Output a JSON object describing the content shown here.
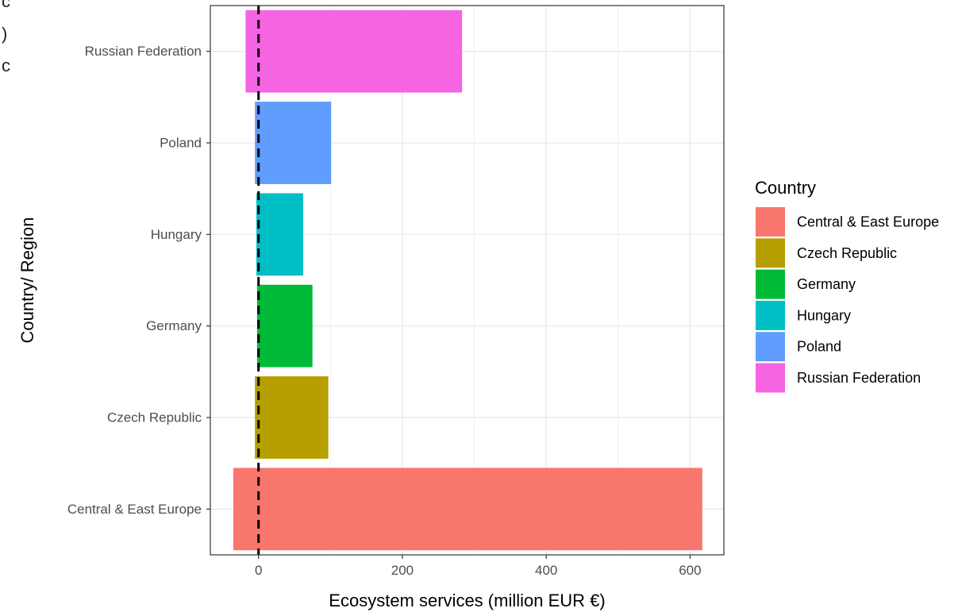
{
  "cropped_fragments": [
    "c",
    ")",
    "c"
  ],
  "chart_data": {
    "type": "bar",
    "orientation": "horizontal",
    "categories": [
      "Central & East Europe",
      "Czech Republic",
      "Germany",
      "Hungary",
      "Poland",
      "Russian Federation"
    ],
    "bars": [
      {
        "category": "Central & East Europe",
        "start": -35,
        "end": 617,
        "color": "#F8766D"
      },
      {
        "category": "Czech Republic",
        "start": -5,
        "end": 97,
        "color": "#B79F00"
      },
      {
        "category": "Germany",
        "start": -2,
        "end": 75,
        "color": "#00BA38"
      },
      {
        "category": "Hungary",
        "start": -3,
        "end": 62,
        "color": "#00BFC4"
      },
      {
        "category": "Poland",
        "start": -5,
        "end": 101,
        "color": "#619CFF"
      },
      {
        "category": "Russian Federation",
        "start": -18,
        "end": 283,
        "color": "#F564E3"
      }
    ],
    "xlabel": "Ecosystem services (million EUR €)",
    "ylabel": "Country/ Region",
    "xlim": [
      -67,
      647
    ],
    "xticks": [
      0,
      200,
      400,
      600
    ],
    "xticks_minor": [
      100,
      300,
      500
    ],
    "reference_line": {
      "x": 0,
      "style": "dashed",
      "color": "#000000"
    },
    "grid": true,
    "legend": {
      "title": "Country",
      "position": "right",
      "items": [
        {
          "label": "Central & East Europe",
          "color": "#F8766D"
        },
        {
          "label": "Czech Republic",
          "color": "#B79F00"
        },
        {
          "label": "Germany",
          "color": "#00BA38"
        },
        {
          "label": "Hungary",
          "color": "#00BFC4"
        },
        {
          "label": "Poland",
          "color": "#619CFF"
        },
        {
          "label": "Russian Federation",
          "color": "#F564E3"
        }
      ]
    }
  }
}
